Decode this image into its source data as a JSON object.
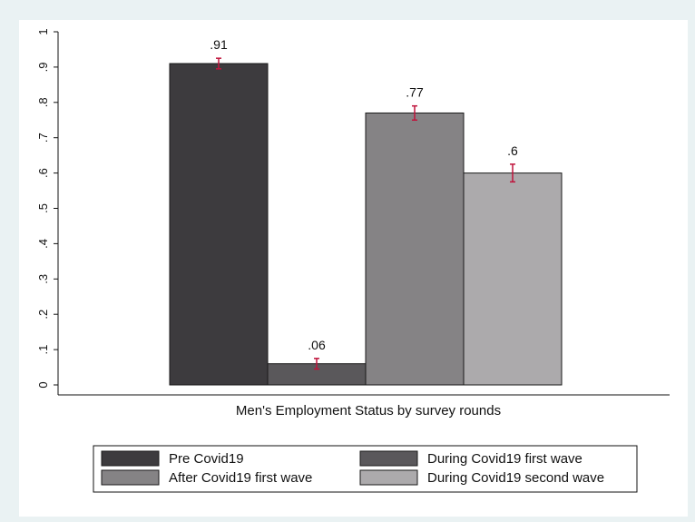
{
  "chart_data": {
    "type": "bar",
    "title": "",
    "xlabel": "Men's Employment Status by survey rounds",
    "ylabel": "",
    "ylim": [
      0,
      1
    ],
    "yticks": [
      0,
      0.1,
      0.2,
      0.3,
      0.4,
      0.5,
      0.6,
      0.7,
      0.8,
      0.9,
      1
    ],
    "ytick_labels": [
      "0",
      ".1",
      ".2",
      ".3",
      ".4",
      ".5",
      ".6",
      ".7",
      ".8",
      ".9",
      "1"
    ],
    "grid": false,
    "legend_position": "bottom",
    "series": [
      {
        "name": "Pre Covid19",
        "value": 0.91,
        "label": ".91",
        "ci": [
          0.895,
          0.925
        ],
        "color": "#3d3b3e"
      },
      {
        "name": "During Covid19 first wave",
        "value": 0.06,
        "label": ".06",
        "ci": [
          0.045,
          0.075
        ],
        "color": "#5a585b"
      },
      {
        "name": "After Covid19 first wave",
        "value": 0.77,
        "label": ".77",
        "ci": [
          0.75,
          0.79
        ],
        "color": "#858385"
      },
      {
        "name": "During Covid19 second wave",
        "value": 0.6,
        "label": ".6",
        "ci": [
          0.575,
          0.625
        ],
        "color": "#acaaac"
      }
    ],
    "errorbar_color": "#c0143c"
  }
}
